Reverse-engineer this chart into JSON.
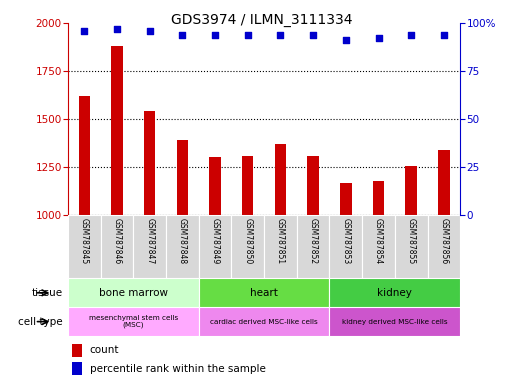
{
  "title": "GDS3974 / ILMN_3111334",
  "samples": [
    "GSM787845",
    "GSM787846",
    "GSM787847",
    "GSM787848",
    "GSM787849",
    "GSM787850",
    "GSM787851",
    "GSM787852",
    "GSM787853",
    "GSM787854",
    "GSM787855",
    "GSM787856"
  ],
  "counts": [
    1620,
    1880,
    1540,
    1390,
    1300,
    1305,
    1370,
    1310,
    1165,
    1175,
    1255,
    1340
  ],
  "percentiles": [
    96,
    97,
    96,
    94,
    94,
    94,
    94,
    94,
    91,
    92,
    94,
    94
  ],
  "ylim_left": [
    1000,
    2000
  ],
  "ylim_right": [
    0,
    100
  ],
  "yticks_left": [
    1000,
    1250,
    1500,
    1750,
    2000
  ],
  "yticks_right": [
    0,
    25,
    50,
    75,
    100
  ],
  "bar_color": "#cc0000",
  "dot_color": "#0000cc",
  "bar_width": 0.35,
  "tissue_groups": [
    {
      "label": "bone marrow",
      "start": 0,
      "end": 3,
      "color": "#ccffcc"
    },
    {
      "label": "heart",
      "start": 4,
      "end": 7,
      "color": "#66dd44"
    },
    {
      "label": "kidney",
      "start": 8,
      "end": 11,
      "color": "#44cc44"
    }
  ],
  "celltype_groups": [
    {
      "label": "mesenchymal stem cells\n(MSC)",
      "start": 0,
      "end": 3,
      "color": "#ffaaff"
    },
    {
      "label": "cardiac derived MSC-like cells",
      "start": 4,
      "end": 7,
      "color": "#ee88ee"
    },
    {
      "label": "kidney derived MSC-like cells",
      "start": 8,
      "end": 11,
      "color": "#cc55cc"
    }
  ],
  "legend_count_label": "count",
  "legend_pct_label": "percentile rank within the sample",
  "tissue_label": "tissue",
  "celltype_label": "cell type",
  "bg_color": "#d8d8d8"
}
